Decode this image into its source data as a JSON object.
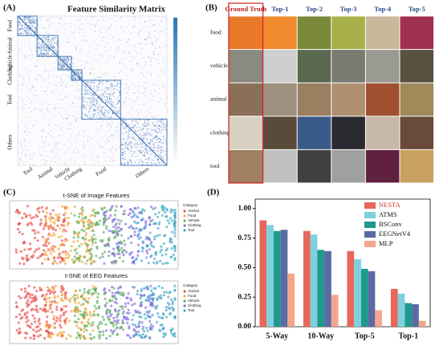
{
  "panel_a": {
    "label": "(A)",
    "title": "Feature Similarity Matrix",
    "y_labels": [
      "Food",
      "Animal",
      "Vehicle",
      "Clothing",
      "Tool",
      "Others"
    ],
    "x_labels": [
      "Tool",
      "Animal",
      "Vehicle",
      "Clothing",
      "Food",
      "Others"
    ]
  },
  "panel_b": {
    "label": "(B)",
    "columns": [
      "Ground Truth",
      "Top-1",
      "Top-2",
      "Top-3",
      "Top-4",
      "Top-5"
    ],
    "rows": [
      "food",
      "vehicle",
      "animal",
      "clothing",
      "tool"
    ]
  },
  "panel_c": {
    "label": "(C)",
    "titles": [
      "t-SNE of Image Features",
      "t-SNE of EEG Features"
    ],
    "legend_title": "Category",
    "legend": [
      "Animal",
      "Food",
      "Vehicle",
      "Clothing",
      "Tool"
    ]
  },
  "chart_data": {
    "type": "bar",
    "label": "(D)",
    "categories": [
      "5-Way",
      "10-Way",
      "Top-5",
      "Top-1"
    ],
    "series": [
      {
        "name": "NESTA",
        "color": "#e8665a",
        "values": [
          0.9,
          0.81,
          0.64,
          0.32
        ]
      },
      {
        "name": "ATMS",
        "color": "#7fd0de",
        "values": [
          0.86,
          0.78,
          0.57,
          0.28
        ]
      },
      {
        "name": "BSConv",
        "color": "#1e9a8c",
        "values": [
          0.81,
          0.65,
          0.49,
          0.2
        ]
      },
      {
        "name": "EEGNetV4",
        "color": "#5a6aa2",
        "values": [
          0.82,
          0.64,
          0.47,
          0.19
        ]
      },
      {
        "name": "MLP",
        "color": "#f4a68c",
        "values": [
          0.45,
          0.27,
          0.14,
          0.05
        ]
      }
    ],
    "ylim": [
      0,
      1.08
    ],
    "yticks": [
      {
        "value": 0,
        "label": "0.00"
      },
      {
        "value": 0.25,
        "label": "0.25"
      },
      {
        "value": 0.5,
        "label": "0.50"
      },
      {
        "value": 0.75,
        "label": "0.75"
      },
      {
        "value": 1,
        "label": "1.00"
      }
    ],
    "legend": "upper right"
  }
}
